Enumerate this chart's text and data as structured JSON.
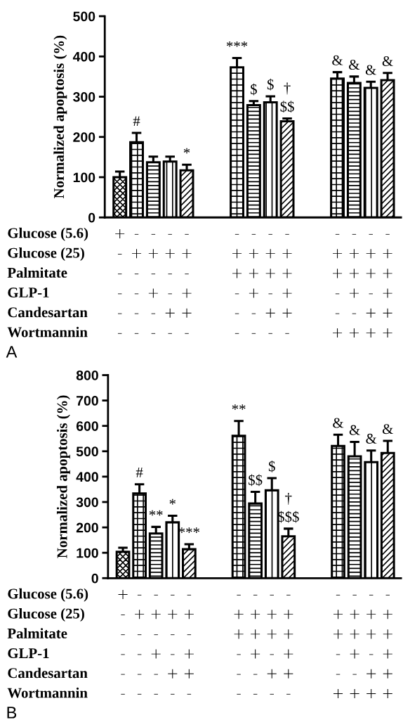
{
  "chart_data": [
    {
      "type": "bar",
      "title": "A",
      "ylabel": "Normalized apoptosis (%)",
      "ylim": [
        0,
        500
      ],
      "yticks": [
        0,
        100,
        200,
        300,
        400,
        500
      ],
      "grid": false,
      "categories": [
        "+\n-\n-\n-\n-\n-",
        "-\n+\n-\n-\n-\n-",
        "-\n+\n-\n+\n-\n-",
        "-\n+\n-\n-\n+\n-",
        "-\n+\n-\n+\n+\n-",
        null,
        null,
        "-\n+\n+\n-\n-\n-",
        "-\n+\n+\n+\n-\n-",
        "-\n+\n+\n-\n+\n-",
        "-\n+\n+\n+\n+\n-",
        null,
        null,
        "-\n+\n+\n-\n-\n+",
        "-\n+\n+\n+\n-\n+",
        "-\n+\n+\n-\n+\n+",
        "-\n+\n+\n+\n+\n+"
      ],
      "series": [
        {
          "color": "#000000",
          "values": [
            100,
            187,
            137,
            139,
            117,
            null,
            null,
            373,
            279,
            286,
            239,
            null,
            null,
            345,
            334,
            322,
            341
          ],
          "errors": [
            [
              100,
              114
            ],
            [
              187,
              210
            ],
            [
              137,
              151
            ],
            [
              139,
              151
            ],
            [
              117,
              131
            ],
            null,
            null,
            [
              373,
              396
            ],
            [
              279,
              289
            ],
            [
              286,
              301
            ],
            [
              239,
              246
            ],
            null,
            null,
            [
              345,
              361
            ],
            [
              334,
              350
            ],
            [
              322,
              337
            ],
            [
              341,
              359
            ]
          ]
        }
      ],
      "annotations": [
        "Glucose (5.6)",
        "Glucose (25)",
        "Palmitate",
        "GLP-1",
        "Candesartan",
        "Wortmannin",
        {
          "text": "#",
          "x": "-\n+\n-\n-\n-\n-",
          "y": 210
        },
        {
          "text": "*",
          "x": "-\n+\n-\n+\n+\n-",
          "y": 131
        },
        {
          "text": "***",
          "x": "-\n+\n+\n-\n-\n-",
          "y": 396
        },
        {
          "text": "$",
          "x": "-\n+\n+\n+\n-\n-",
          "y": 289
        },
        {
          "text": "$",
          "x": "-\n+\n+\n-\n+\n-",
          "y": 301
        },
        {
          "text": "$$",
          "x": "-\n+\n+\n+\n+\n-",
          "y": 246
        },
        {
          "text": "†",
          "x": "-\n+\n+\n+\n+\n-",
          "y": 246
        },
        {
          "text": "&",
          "x": "-\n+\n+\n-\n-\n+",
          "y": 361
        },
        {
          "text": "&",
          "x": "-\n+\n+\n+\n-\n+",
          "y": 350
        },
        {
          "text": "&",
          "x": "-\n+\n+\n-\n+\n+",
          "y": 337
        },
        {
          "text": "&",
          "x": "-\n+\n+\n+\n+\n+",
          "y": 359
        }
      ]
    },
    {
      "type": "bar",
      "title": "B",
      "ylabel": "Normalized apoptosis (%)",
      "ylim": [
        0,
        800
      ],
      "yticks": [
        0,
        100,
        200,
        300,
        400,
        500,
        600,
        700,
        800
      ],
      "grid": false,
      "categories": [
        "+\n-\n-\n-\n-\n-",
        "-\n+\n-\n-\n-\n-",
        "-\n+\n-\n+\n-\n-",
        "-\n+\n-\n-\n+\n-",
        "-\n+\n-\n+\n+\n-",
        null,
        null,
        "-\n+\n+\n-\n-\n-",
        "-\n+\n+\n+\n-\n-",
        "-\n+\n+\n-\n+\n-",
        "-\n+\n+\n+\n+\n-",
        null,
        null,
        "-\n+\n+\n-\n-\n+",
        "-\n+\n+\n+\n-\n+",
        "-\n+\n+\n-\n+\n+",
        "-\n+\n+\n+\n+\n+"
      ],
      "series": [
        {
          "color": "#000000",
          "values": [
            104,
            334,
            176,
            220,
            114,
            null,
            null,
            561,
            294,
            346,
            165,
            null,
            null,
            521,
            480,
            457,
            493
          ],
          "errors": [
            [
              104,
              120
            ],
            [
              334,
              370
            ],
            [
              176,
              202
            ],
            [
              220,
              246
            ],
            [
              114,
              134
            ],
            null,
            null,
            [
              561,
              619
            ],
            [
              294,
              340
            ],
            [
              346,
              394
            ],
            [
              165,
              195
            ],
            null,
            null,
            [
              521,
              565
            ],
            [
              480,
              537
            ],
            [
              457,
              503
            ],
            [
              493,
              541
            ]
          ]
        }
      ],
      "annotations": [
        "Glucose (5.6)",
        "Glucose (25)",
        "Palmitate",
        "GLP-1",
        "Candesartan",
        "Wortmannin",
        {
          "text": "#",
          "x": "-\n+\n-\n-\n-\n-",
          "y": 370
        },
        {
          "text": "**",
          "x": "-\n+\n-\n+\n-\n-",
          "y": 202
        },
        {
          "text": "*",
          "x": "-\n+\n-\n-\n+\n-",
          "y": 246
        },
        {
          "text": "***",
          "x": "-\n+\n-\n+\n+\n-",
          "y": 134
        },
        {
          "text": "**",
          "x": "-\n+\n+\n-\n-\n-",
          "y": 619
        },
        {
          "text": "$$",
          "x": "-\n+\n+\n+\n-\n-",
          "y": 340
        },
        {
          "text": "$",
          "x": "-\n+\n+\n-\n+\n-",
          "y": 394
        },
        {
          "text": "$$$",
          "x": "-\n+\n+\n+\n+\n-",
          "y": 195
        },
        {
          "text": "†",
          "x": "-\n+\n+\n+\n+\n-",
          "y": 195
        },
        {
          "text": "&",
          "x": "-\n+\n+\n-\n-\n+",
          "y": 565
        },
        {
          "text": "&",
          "x": "-\n+\n+\n+\n-\n+",
          "y": 537
        },
        {
          "text": "&",
          "x": "-\n+\n+\n-\n+\n+",
          "y": 503
        },
        {
          "text": "&",
          "x": "-\n+\n+\n+\n+\n+",
          "y": 541
        }
      ]
    }
  ]
}
